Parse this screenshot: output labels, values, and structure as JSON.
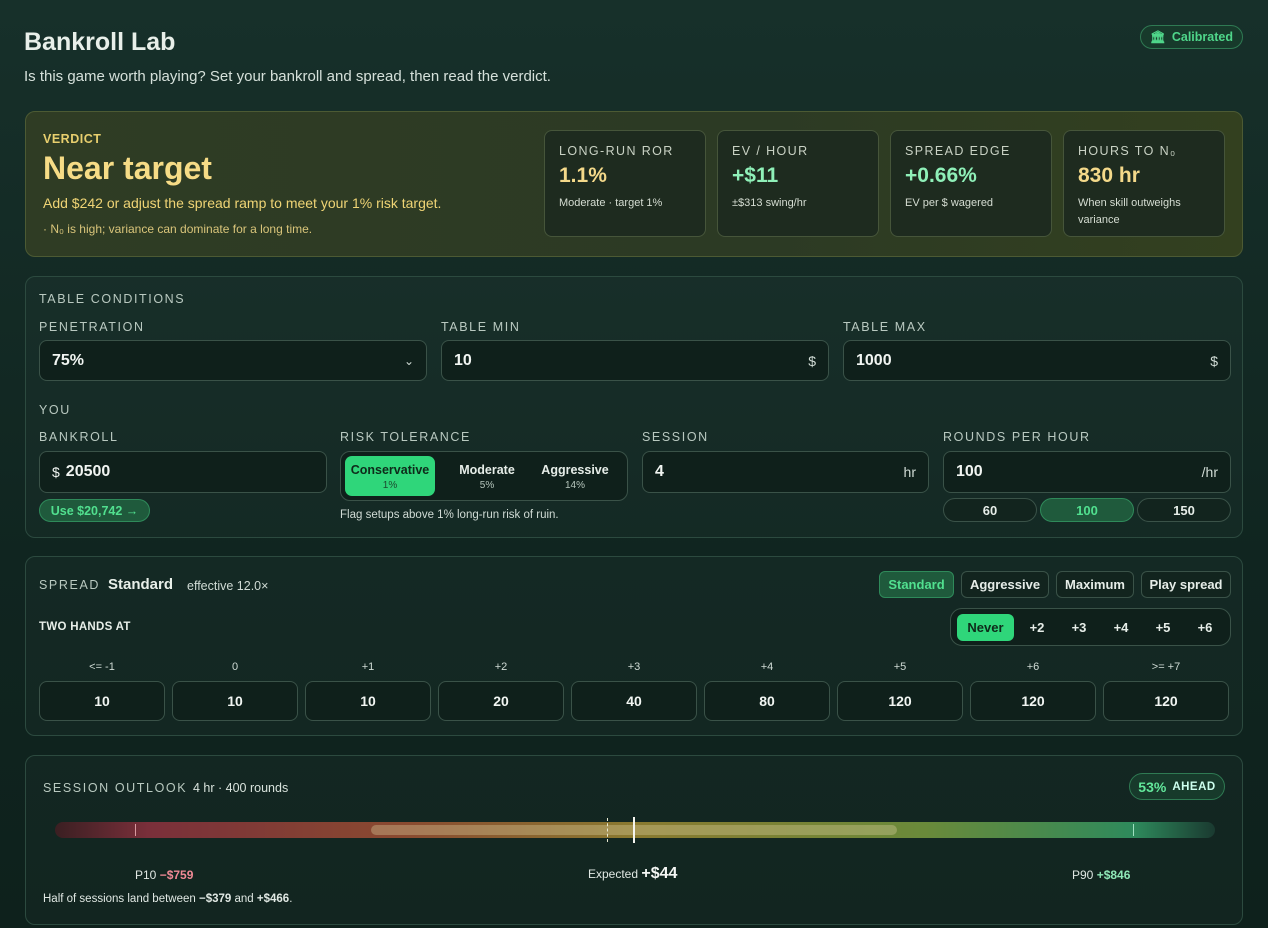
{
  "header": {
    "title": "Bankroll Lab",
    "subtitle": "Is this game worth playing? Set your bankroll and spread, then read the verdict.",
    "badge": "Calibrated"
  },
  "verdict": {
    "label": "VERDICT",
    "headline": "Near target",
    "message": "Add $242 or adjust the spread ramp to meet your 1% risk target.",
    "note": "· N₀ is high; variance can dominate for a long time.",
    "stats": [
      {
        "label": "LONG-RUN ROR",
        "value": "1.1%",
        "sub": "Moderate · target 1%"
      },
      {
        "label": "EV / HOUR",
        "value": "+$11",
        "sub": "±$313 swing/hr"
      },
      {
        "label": "SPREAD EDGE",
        "value": "+0.66%",
        "sub": "EV per $ wagered"
      },
      {
        "label": "HOURS TO N₀",
        "value": "830 hr",
        "sub": "When skill outweighs variance"
      }
    ]
  },
  "table_conditions": {
    "title": "TABLE CONDITIONS",
    "fields": [
      {
        "label": "PENETRATION",
        "value": "75%"
      },
      {
        "label": "TABLE MIN",
        "value": "10",
        "unit": "$"
      },
      {
        "label": "TABLE MAX",
        "value": "1000",
        "unit": "$"
      }
    ]
  },
  "you": {
    "title": "YOU",
    "bankroll": {
      "label": "BANKROLL",
      "prefix": "$",
      "value": "20500",
      "suggest": "Use $20,742 →"
    },
    "risk": {
      "label": "RISK TOLERANCE",
      "options": [
        {
          "name": "Conservative",
          "pct": "1%"
        },
        {
          "name": "Moderate",
          "pct": "5%"
        },
        {
          "name": "Aggressive",
          "pct": "14%"
        }
      ],
      "note": "Flag setups above 1% long-run risk of ruin."
    },
    "session": {
      "label": "SESSION",
      "value": "4",
      "unit": "hr"
    },
    "rounds": {
      "label": "ROUNDS PER HOUR",
      "value": "100",
      "unit": "/hr",
      "presets": [
        "60",
        "100",
        "150"
      ]
    }
  },
  "spread": {
    "label": "SPREAD",
    "name": "Standard",
    "effective": "effective 12.0×",
    "presets": [
      "Standard",
      "Aggressive",
      "Maximum",
      "Play spread"
    ],
    "two_hands_label": "TWO HANDS AT",
    "two_hands_options": [
      "Never",
      "+2",
      "+3",
      "+4",
      "+5",
      "+6"
    ],
    "counts": [
      "<= -1",
      "0",
      "+1",
      "+2",
      "+3",
      "+4",
      "+5",
      "+6",
      ">= +7"
    ],
    "bets": [
      "10",
      "10",
      "10",
      "20",
      "40",
      "80",
      "120",
      "120",
      "120"
    ]
  },
  "outlook": {
    "label": "SESSION OUTLOOK",
    "detail": "4 hr · 400 rounds",
    "ahead_pct": "53%",
    "ahead_label": "AHEAD",
    "p10_label": "P10",
    "p10": "−$759",
    "expected_label": "Expected",
    "expected": "+$44",
    "p90_label": "P90",
    "p90": "+$846",
    "summary": {
      "lead": "Half of sessions land between",
      "low": "−$379",
      "mid": "and",
      "high": "+$466",
      "end": "."
    }
  }
}
